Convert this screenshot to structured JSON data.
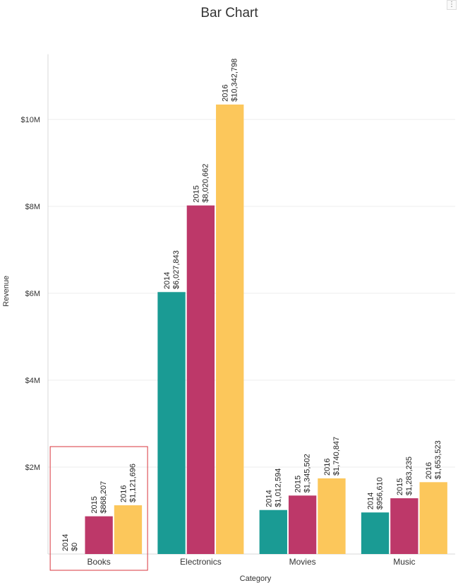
{
  "chart_data": {
    "type": "bar",
    "title": "Bar Chart",
    "xlabel": "Category",
    "ylabel": "Revenue",
    "categories": [
      "Books",
      "Electronics",
      "Movies",
      "Music"
    ],
    "ylim": [
      0,
      11500000
    ],
    "yticks": [
      {
        "value": 2000000,
        "label": "$2M"
      },
      {
        "value": 4000000,
        "label": "$4M"
      },
      {
        "value": 6000000,
        "label": "$6M"
      },
      {
        "value": 8000000,
        "label": "$8M"
      },
      {
        "value": 10000000,
        "label": "$10M"
      }
    ],
    "grid": true,
    "highlighted_category": "Books",
    "series": [
      {
        "year": "2014",
        "color": "#1a9b94",
        "values": [
          0,
          6027843,
          1012594,
          956610
        ],
        "labels": [
          "$0",
          "$6,027,843",
          "$1,012,594",
          "$956,610"
        ]
      },
      {
        "year": "2015",
        "color": "#bd3869",
        "values": [
          868207,
          8020662,
          1345502,
          1283235
        ],
        "labels": [
          "$868,207",
          "$8,020,662",
          "$1,345,502",
          "$1,283,235"
        ]
      },
      {
        "year": "2016",
        "color": "#fcc75b",
        "values": [
          1121696,
          10342798,
          1740847,
          1653523
        ],
        "labels": [
          "$1,121,696",
          "$10,342,798",
          "$1,740,847",
          "$1,653,523"
        ]
      }
    ],
    "highlight_color": "#d9363e"
  },
  "toolbar": {
    "menu_glyph": "⋮"
  }
}
